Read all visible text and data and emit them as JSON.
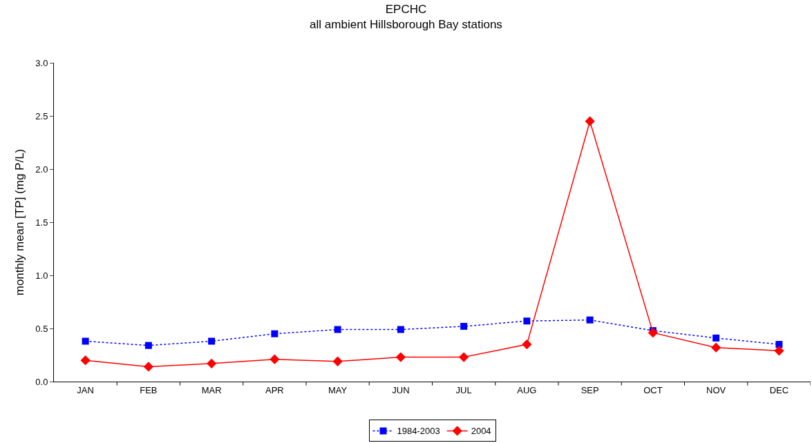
{
  "chart_data": {
    "type": "line",
    "title": "EPCHC",
    "subtitle": "all ambient Hillsborough Bay stations",
    "ylabel": "monthly mean [TP] (mg P/L)",
    "categories": [
      "JAN",
      "FEB",
      "MAR",
      "APR",
      "MAY",
      "JUN",
      "JUL",
      "AUG",
      "SEP",
      "OCT",
      "NOV",
      "DEC"
    ],
    "series": [
      {
        "name": "1984-2003",
        "color": "#0000ff",
        "marker": "square",
        "line_style": "dotted",
        "values": [
          0.38,
          0.34,
          0.38,
          0.45,
          0.49,
          0.49,
          0.52,
          0.57,
          0.58,
          0.48,
          0.41,
          0.35
        ]
      },
      {
        "name": "2004",
        "color": "#ff0000",
        "marker": "diamond",
        "line_style": "solid",
        "values": [
          0.2,
          0.14,
          0.17,
          0.21,
          0.19,
          0.23,
          0.23,
          0.35,
          2.45,
          0.46,
          0.32,
          0.29
        ]
      }
    ],
    "ylim": [
      0,
      3
    ],
    "yticks": [
      {
        "value": 0,
        "label": "0.0"
      },
      {
        "value": 0.5,
        "label": "0.5"
      },
      {
        "value": 1,
        "label": "1.0"
      },
      {
        "value": 1.5,
        "label": "1.5"
      },
      {
        "value": 2,
        "label": "2.0"
      },
      {
        "value": 2.5,
        "label": "2.5"
      },
      {
        "value": 3,
        "label": "3.0"
      }
    ],
    "grid": false,
    "legend": "bottom"
  }
}
